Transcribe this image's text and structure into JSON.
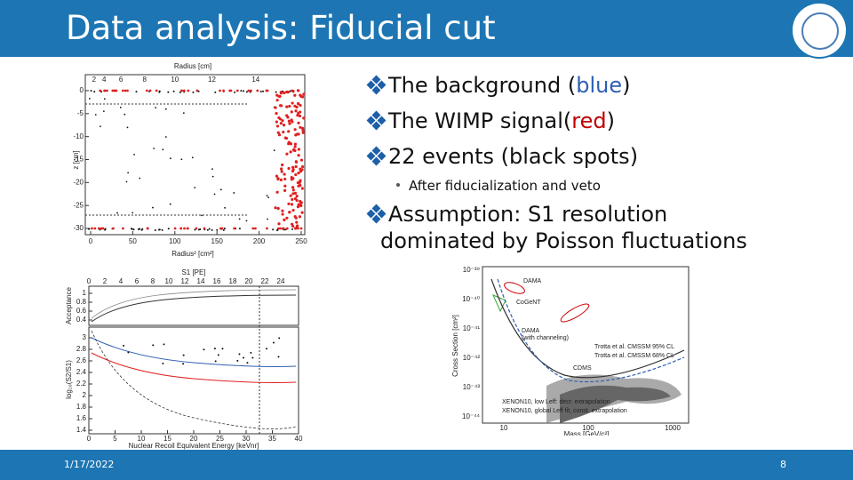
{
  "header": {
    "title": "Data analysis: Fiducial cut"
  },
  "bullets": [
    {
      "parts": [
        {
          "text": "The background ("
        },
        {
          "text": "blue",
          "color": "#2e5fb3"
        },
        {
          "text": ")"
        }
      ]
    },
    {
      "parts": [
        {
          "text": "The WIMP signal("
        },
        {
          "text": "red",
          "color": "#c00000"
        },
        {
          "text": ")"
        }
      ]
    },
    {
      "parts": [
        {
          "text": "22 events (black spots)"
        }
      ]
    }
  ],
  "sub_bullet": "After fiducialization and veto",
  "assumption": {
    "line1": "Assumption: S1 resolution",
    "line2": "dominated by Poisson fluctuations"
  },
  "figure_fiducial": {
    "top_label": "Radius [cm]",
    "top_ticks": [
      2,
      4,
      6,
      8,
      10,
      12,
      14
    ],
    "x_label": "Radius² [cm²]",
    "x_ticks": [
      0,
      50,
      100,
      150,
      200,
      250
    ],
    "y_label": "z [cm]",
    "y_ticks": [
      0,
      -5,
      -10,
      -15,
      -20,
      -25,
      -30
    ]
  },
  "figure_acceptance": {
    "top_label": "S1 [PE]",
    "top_ticks": [
      0,
      2,
      4,
      6,
      8,
      10,
      12,
      14,
      16,
      18,
      20,
      22,
      24
    ],
    "acc_label": "Acceptance",
    "acc_ticks": [
      0.4,
      0.6,
      0.8,
      1
    ],
    "y_label": "log₁₀(S2/S1)",
    "y_ticks": [
      1.4,
      1.6,
      1.8,
      2,
      2.2,
      2.4,
      2.6,
      2.8,
      3
    ],
    "x_label": "Nuclear Recoil Equivalent Energy [keVnr]",
    "x_ticks": [
      0,
      5,
      10,
      15,
      20,
      25,
      30,
      35,
      40
    ]
  },
  "figure_exclusion": {
    "y_label": "Cross Section [cm²]",
    "y_ticks": [
      "10⁻³⁹",
      "10⁻⁴⁰",
      "10⁻⁴¹",
      "10⁻⁴²",
      "10⁻⁴³",
      "10⁻⁴⁴"
    ],
    "x_label": "Mass [GeV/c²]",
    "x_ticks": [
      "10",
      "100",
      "1000"
    ],
    "labels": {
      "dama": "DAMA",
      "cogent": "CoGeNT",
      "dama_channeling_1": "DAMA",
      "dama_channeling_2": "(with channeling)",
      "cdms": "CDMS",
      "trotta95": "Trotta et al. CMSSM 95% CL",
      "trotta68": "Trotta et al. CMSSM 68% CL",
      "xenon_low": "XENON10, low Leff: decr. extrapolation",
      "xenon_global": "XENON10, global Leff fit, const. extrapolation"
    }
  },
  "footer": {
    "date": "1/17/2022",
    "page": "8"
  }
}
